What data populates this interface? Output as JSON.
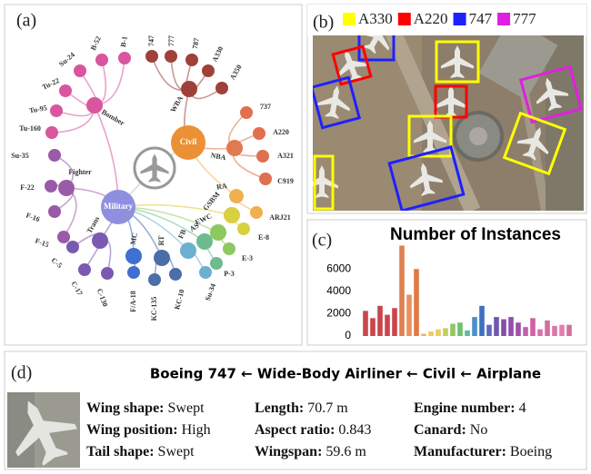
{
  "panels": {
    "a": "(a)",
    "b": "(b)",
    "c": "(c)",
    "d": "(d)"
  },
  "hierarchy": {
    "nodes": [
      {
        "label": "Military"
      },
      {
        "label": "Civil"
      },
      {
        "label": "Bomber"
      },
      {
        "label": "Fighter"
      },
      {
        "label": "Trans"
      },
      {
        "label": "MC"
      },
      {
        "label": "RT"
      },
      {
        "label": "FB"
      },
      {
        "label": "AS"
      },
      {
        "label": "EWC"
      },
      {
        "label": "GSBM"
      },
      {
        "label": "RA"
      },
      {
        "label": "NBA"
      },
      {
        "label": "WBA"
      },
      {
        "label": "B-1"
      },
      {
        "label": "B-52"
      },
      {
        "label": "Su-24"
      },
      {
        "label": "Tu-22"
      },
      {
        "label": "Tu-95"
      },
      {
        "label": "Tu-160"
      },
      {
        "label": "Su-35"
      },
      {
        "label": "F-22"
      },
      {
        "label": "F-16"
      },
      {
        "label": "F-15"
      },
      {
        "label": "C-5"
      },
      {
        "label": "C-17"
      },
      {
        "label": "C-130"
      },
      {
        "label": "F/A-18"
      },
      {
        "label": "KC-135"
      },
      {
        "label": "KC-10"
      },
      {
        "label": "Su-34"
      },
      {
        "label": "P-3"
      },
      {
        "label": "E-3"
      },
      {
        "label": "E-8"
      },
      {
        "label": "ARJ21"
      },
      {
        "label": "C919"
      },
      {
        "label": "A321"
      },
      {
        "label": "A220"
      },
      {
        "label": "737"
      },
      {
        "label": "A350"
      },
      {
        "label": "A330"
      },
      {
        "label": "787"
      },
      {
        "label": "777"
      },
      {
        "label": "747"
      }
    ]
  },
  "detection": {
    "legend": [
      {
        "label": "A330",
        "color": "#ffff00"
      },
      {
        "label": "A220",
        "color": "#ff0000"
      },
      {
        "label": "747",
        "color": "#2020ff"
      },
      {
        "label": "777",
        "color": "#e020e0"
      }
    ]
  },
  "chart_data": {
    "type": "bar",
    "title": "Number of Instances",
    "categories": [
      null,
      null,
      null,
      null,
      null,
      null,
      null,
      null,
      null,
      null,
      null,
      null,
      null,
      null,
      null,
      null,
      null,
      null,
      null,
      null,
      null,
      null,
      null,
      null,
      null,
      null,
      null,
      null,
      null
    ],
    "values": [
      2250,
      1600,
      2700,
      1900,
      2500,
      8100,
      3700,
      6000,
      200,
      400,
      600,
      700,
      1100,
      1200,
      500,
      1700,
      2700,
      1000,
      1700,
      1500,
      1700,
      1200,
      800,
      1600,
      600,
      1400,
      900,
      1000,
      1000
    ],
    "colors": [
      "#c8464a",
      "#c8464a",
      "#c8464a",
      "#c8464a",
      "#c8464a",
      "#e08050",
      "#e89060",
      "#e07a45",
      "#f0b070",
      "#f0c860",
      "#e8d060",
      "#c0d060",
      "#90c860",
      "#70c070",
      "#60b8a8",
      "#4a90c8",
      "#4070c0",
      "#6068c0",
      "#7058b0",
      "#8050a8",
      "#9050a8",
      "#a050a8",
      "#c060b0",
      "#d060a8",
      "#d870b0",
      "#d070a0",
      "#d878a8",
      "#e080b0",
      "#d070a0"
    ],
    "ylim": [
      0,
      8300
    ],
    "yticks": [
      0,
      2000,
      4000,
      6000
    ],
    "grid": false
  },
  "detail": {
    "title": "Boeing 747 ← Wide-Body Airliner ← Civil ← Airplane",
    "attributes": [
      {
        "key": "Wing shape:",
        "value": "Swept"
      },
      {
        "key": "Length:",
        "value": "70.7 m"
      },
      {
        "key": "Engine number:",
        "value": "4"
      },
      {
        "key": "Wing position:",
        "value": "High"
      },
      {
        "key": "Aspect ratio:",
        "value": "0.843"
      },
      {
        "key": "Canard:",
        "value": "No"
      },
      {
        "key": "Tail shape:",
        "value": "Swept"
      },
      {
        "key": "Wingspan:",
        "value": "59.6 m"
      },
      {
        "key": "Manufacturer:",
        "value": "Boeing"
      }
    ]
  }
}
